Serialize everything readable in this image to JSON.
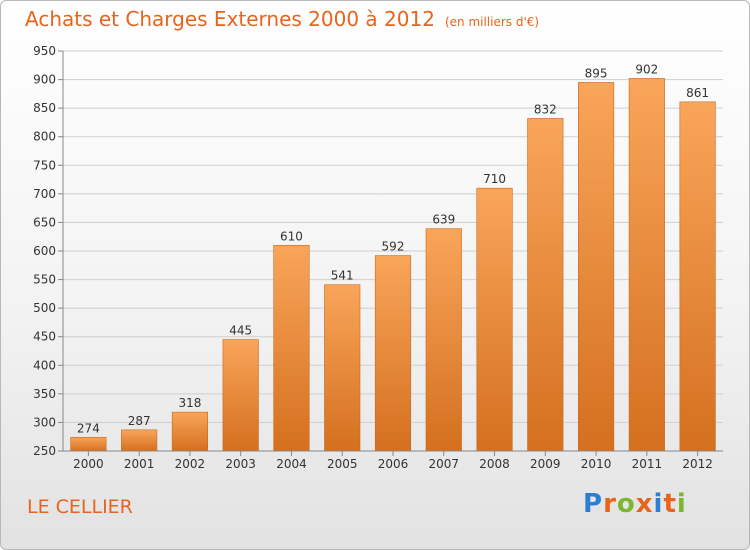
{
  "header": {
    "title": "Achats et Charges Externes 2000 à 2012",
    "subtitle": "(en milliers d'€)"
  },
  "footer": {
    "city": "LE CELLIER",
    "logo_text": "Proxiti",
    "logo_colors": [
      "#2a7fd4",
      "#e8641c",
      "#7cb82f",
      "#e8641c",
      "#2a7fd4",
      "#e8641c",
      "#7cb82f"
    ]
  },
  "chart_data": {
    "type": "bar",
    "categories": [
      "2000",
      "2001",
      "2002",
      "2003",
      "2004",
      "2005",
      "2006",
      "2007",
      "2008",
      "2009",
      "2010",
      "2011",
      "2012"
    ],
    "values": [
      274,
      287,
      318,
      445,
      610,
      541,
      592,
      639,
      710,
      832,
      895,
      902,
      861
    ],
    "data_labels": [
      "274",
      "287",
      "318",
      "445",
      "610",
      "541",
      "592",
      "639",
      "710",
      "832",
      "895",
      "902",
      "861"
    ],
    "ylim": [
      250,
      950
    ],
    "yticks": [
      250,
      300,
      350,
      400,
      450,
      500,
      550,
      600,
      650,
      700,
      750,
      800,
      850,
      900,
      950
    ],
    "ytick_labels": [
      "250",
      "300",
      "350",
      "400",
      "450",
      "500",
      "550",
      "600",
      "650",
      "700",
      "750",
      "800",
      "850",
      "900",
      "950"
    ],
    "grid": true,
    "bar_color_top": "#f9a55a",
    "bar_color_bottom": "#d4701f"
  }
}
